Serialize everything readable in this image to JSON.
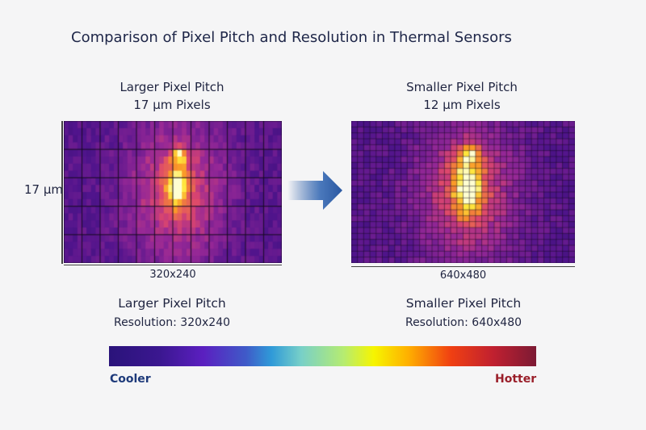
{
  "title": "Comparison of Pixel Pitch and Resolution in Thermal Sensors",
  "left_panel": {
    "heading": "Larger Pixel Pitch",
    "subheading": "17 µm Pixels",
    "side_label": "17 µm",
    "bottom_label": "320x240",
    "caption_title": "Larger Pixel Pitch",
    "caption_resolution": "Resolution: 320x240"
  },
  "right_panel": {
    "heading": "Smaller Pixel Pitch",
    "subheading": "12 µm Pixels",
    "bottom_label": "640x480",
    "caption_title": "Smaller Pixel Pitch",
    "caption_resolution": "Resolution: 640x480"
  },
  "arrow": {
    "icon": "right-arrow-icon",
    "color": "#2f5fa8"
  },
  "color_scale": {
    "cool_label": "Cooler",
    "hot_label": "Hotter",
    "cool_color": "#1e3a7a",
    "hot_color": "#9a1f2a"
  }
}
